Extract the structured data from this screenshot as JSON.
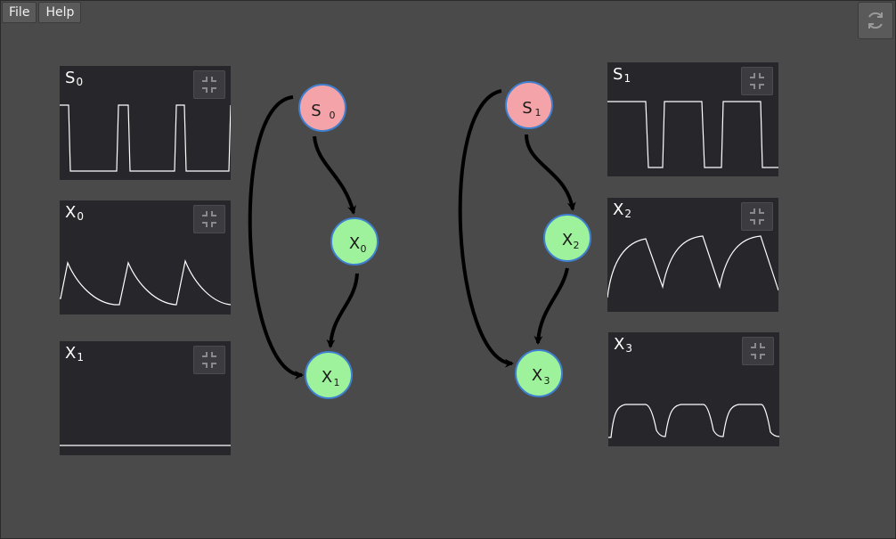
{
  "menu": {
    "file": "File",
    "help": "Help"
  },
  "toolbar": {
    "refresh_icon": "refresh-icon"
  },
  "colors": {
    "source_node": "#f4a3a8",
    "state_node": "#9ef29b",
    "node_border": "#3f7fd0",
    "panel_bg": "#27272b",
    "trace": "#ffffff"
  },
  "panels": [
    {
      "id": "s0",
      "label": "S",
      "sub": "0",
      "signal": "square"
    },
    {
      "id": "x0",
      "label": "X",
      "sub": "0",
      "signal": "decay-spikes"
    },
    {
      "id": "x1",
      "label": "X",
      "sub": "1",
      "signal": "flat"
    },
    {
      "id": "s1",
      "label": "S",
      "sub": "1",
      "signal": "square"
    },
    {
      "id": "x2",
      "label": "X",
      "sub": "2",
      "signal": "saturating-sawtooth"
    },
    {
      "id": "x3",
      "label": "X",
      "sub": "3",
      "signal": "smoothed-square"
    }
  ],
  "nodes": [
    {
      "id": "S0",
      "label": "S",
      "sub": "0",
      "kind": "source"
    },
    {
      "id": "X0",
      "label": "X",
      "sub": "0",
      "kind": "state"
    },
    {
      "id": "X1",
      "label": "X",
      "sub": "1",
      "kind": "state"
    },
    {
      "id": "S1",
      "label": "S",
      "sub": "1",
      "kind": "source"
    },
    {
      "id": "X2",
      "label": "X",
      "sub": "2",
      "kind": "state"
    },
    {
      "id": "X3",
      "label": "X",
      "sub": "3",
      "kind": "state"
    }
  ],
  "edges": [
    {
      "from": "S0",
      "to": "X0"
    },
    {
      "from": "X0",
      "to": "X1"
    },
    {
      "from": "S0",
      "to": "X1"
    },
    {
      "from": "S1",
      "to": "X2"
    },
    {
      "from": "X2",
      "to": "X3"
    },
    {
      "from": "S1",
      "to": "X3"
    }
  ]
}
